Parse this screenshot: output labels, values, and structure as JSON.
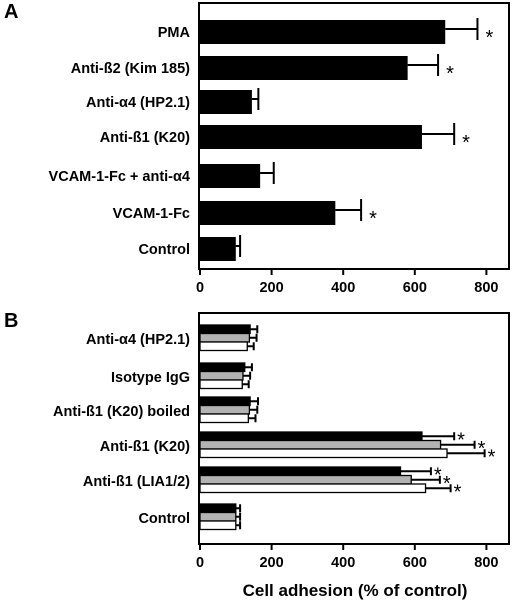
{
  "chart_data": [
    {
      "type": "bar",
      "orientation": "horizontal",
      "panel_label": "A",
      "categories": [
        "PMA",
        "Anti-ß2 (Kim 185)",
        "Anti-α4 (HP2.1)",
        "Anti-ß1 (K20)",
        "VCAM-1-Fc + anti-α4",
        "VCAM-1-Fc",
        "Control"
      ],
      "series": [
        {
          "values": [
            685,
            580,
            145,
            620,
            168,
            378,
            100
          ],
          "errors": [
            90,
            85,
            18,
            90,
            38,
            72,
            12
          ],
          "color": "#000000"
        }
      ],
      "significant": [
        true,
        true,
        false,
        true,
        false,
        true,
        false
      ],
      "xticks": [
        "0",
        "200",
        "400",
        "600",
        "800"
      ],
      "xlim": [
        0,
        900
      ],
      "xlabel": "",
      "ylabel": "",
      "star_symbol": "*"
    },
    {
      "type": "bar",
      "orientation": "horizontal",
      "panel_label": "B",
      "categories": [
        "Anti-α4 (HP2.1)",
        "Isotype IgG",
        "Anti-ß1 (K20) boiled",
        "Anti-ß1 (K20)",
        "Anti-ß1 (LIA1/2)",
        "Control"
      ],
      "series": [
        {
          "values": [
            140,
            125,
            140,
            620,
            560,
            100
          ],
          "errors": [
            20,
            20,
            22,
            90,
            85,
            12
          ],
          "color": "#000000",
          "significant": [
            false,
            false,
            false,
            true,
            true,
            false
          ]
        },
        {
          "values": [
            138,
            120,
            138,
            672,
            590,
            100
          ],
          "errors": [
            20,
            20,
            22,
            95,
            80,
            12
          ],
          "color": "#b3b3b3",
          "significant": [
            false,
            false,
            false,
            true,
            true,
            false
          ]
        },
        {
          "values": [
            132,
            118,
            135,
            690,
            630,
            100
          ],
          "errors": [
            18,
            18,
            20,
            105,
            70,
            12
          ],
          "color": "#ffffff",
          "significant": [
            false,
            false,
            false,
            true,
            true,
            false
          ]
        }
      ],
      "xticks": [
        "0",
        "200",
        "400",
        "600",
        "800"
      ],
      "xlim": [
        0,
        900
      ],
      "xlabel": "Cell adhesion (% of control)",
      "ylabel": "",
      "star_symbol": "*"
    }
  ]
}
